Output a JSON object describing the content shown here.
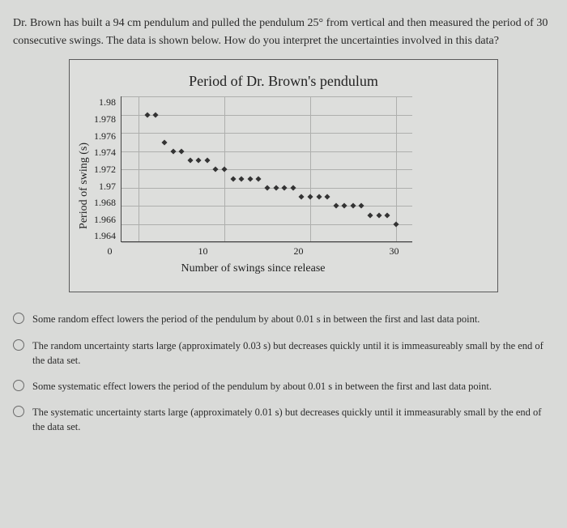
{
  "question": "Dr. Brown has built a 94 cm pendulum and pulled the pendulum 25° from vertical and then measured the period of 30 consecutive swings.  The data is shown below.  How do you interpret the uncertainties involved in this data?",
  "chart": {
    "title": "Period of Dr. Brown's pendulum",
    "ylabel": "Period of swing (s)",
    "xlabel": "Number of swings since release",
    "ylim": [
      1.964,
      1.98
    ],
    "yticks": [
      1.98,
      1.978,
      1.976,
      1.974,
      1.972,
      1.97,
      1.968,
      1.966,
      1.964
    ],
    "xlim": [
      -2,
      32
    ],
    "xticks": [
      0,
      10,
      20,
      30
    ],
    "grid_color": "#aeafad",
    "background": "#dddedc",
    "marker_color": "#333333",
    "marker_size": 5,
    "data": [
      [
        1,
        1.978
      ],
      [
        2,
        1.978
      ],
      [
        3,
        1.975
      ],
      [
        4,
        1.974
      ],
      [
        5,
        1.974
      ],
      [
        6,
        1.973
      ],
      [
        7,
        1.973
      ],
      [
        8,
        1.973
      ],
      [
        9,
        1.972
      ],
      [
        10,
        1.972
      ],
      [
        11,
        1.971
      ],
      [
        12,
        1.971
      ],
      [
        13,
        1.971
      ],
      [
        14,
        1.971
      ],
      [
        15,
        1.97
      ],
      [
        16,
        1.97
      ],
      [
        17,
        1.97
      ],
      [
        18,
        1.97
      ],
      [
        19,
        1.969
      ],
      [
        20,
        1.969
      ],
      [
        21,
        1.969
      ],
      [
        22,
        1.969
      ],
      [
        23,
        1.968
      ],
      [
        24,
        1.968
      ],
      [
        25,
        1.968
      ],
      [
        26,
        1.968
      ],
      [
        27,
        1.967
      ],
      [
        28,
        1.967
      ],
      [
        29,
        1.967
      ],
      [
        30,
        1.966
      ]
    ]
  },
  "options": [
    "Some random effect lowers the period of the pendulum by about 0.01 s in between the first and last data point.",
    "The random uncertainty starts large (approximately 0.03 s) but decreases quickly until it is immeasureably small by the end of the data set.",
    "Some systematic effect lowers the period of the pendulum by about 0.01 s in between the first and last data point.",
    "The systematic uncertainty starts large (approximately 0.01 s) but decreases quickly until it immeasurably small by the end of the data set."
  ]
}
